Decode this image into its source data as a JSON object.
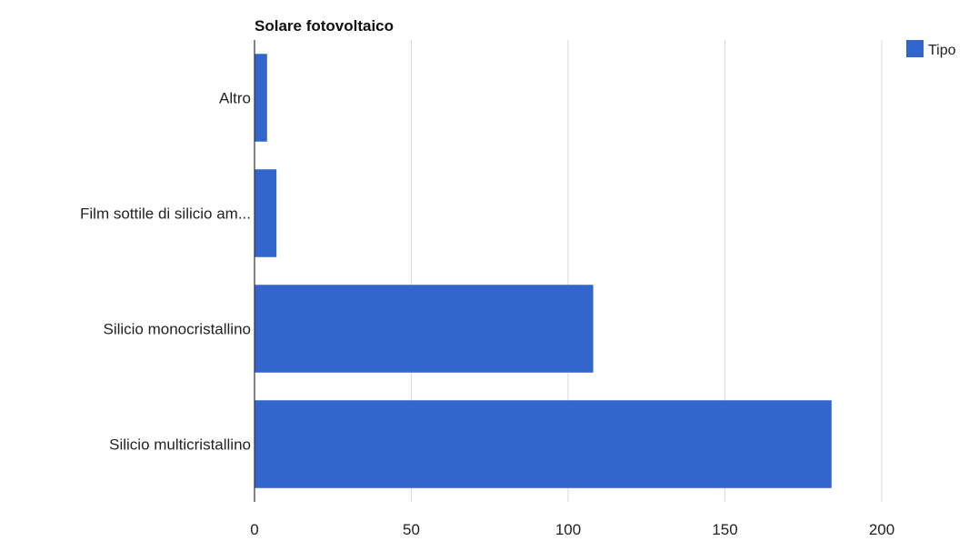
{
  "chart_data": {
    "type": "bar",
    "orientation": "horizontal",
    "title": "Solare fotovoltaico",
    "xlabel": "",
    "ylabel": "",
    "categories": [
      "Altro",
      "Film sottile di silicio am...",
      "Silicio monocristallino",
      "Silicio multicristallino"
    ],
    "series": [
      {
        "name": "Tipo",
        "values": [
          4,
          7,
          108,
          184
        ]
      }
    ],
    "xlim": [
      0,
      200
    ],
    "xticks": [
      0,
      50,
      100,
      150,
      200
    ],
    "grid": true,
    "legend": "top-right",
    "colors": {
      "bar": "#3366cc",
      "grid": "#d9d9d9",
      "axis": "#333333",
      "text": "#222222"
    }
  }
}
